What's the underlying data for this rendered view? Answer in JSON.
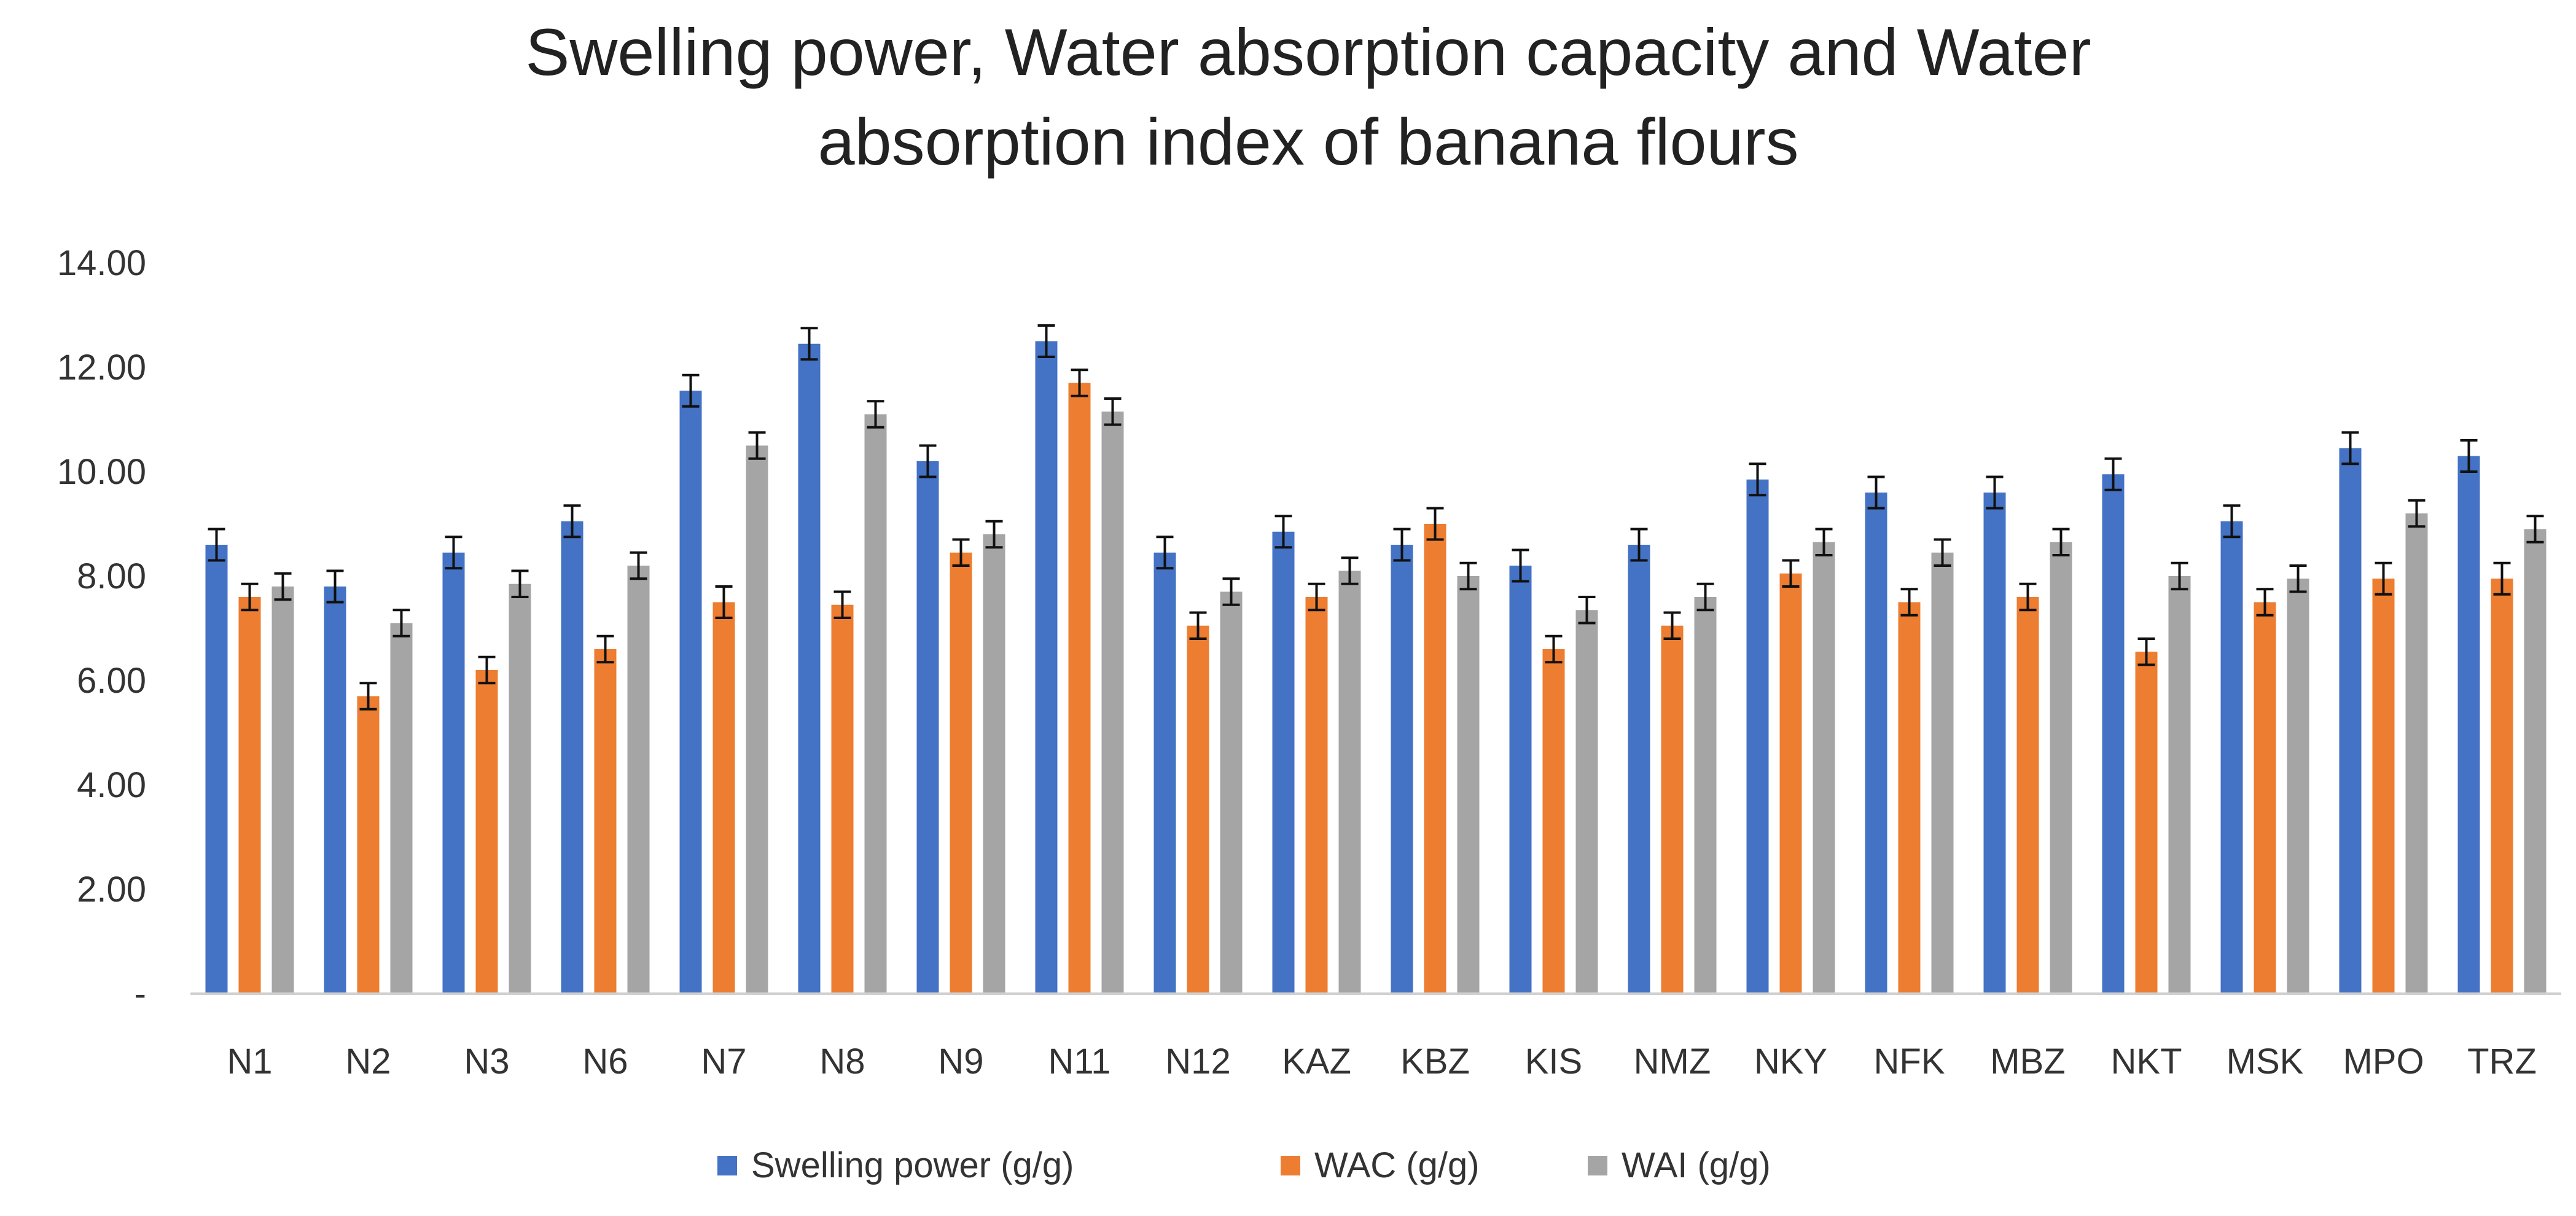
{
  "chart_data": {
    "type": "bar",
    "title": [
      "Swelling power, Water  absorption capacity and Water",
      "absorption index of banana flours"
    ],
    "xlabel": "",
    "ylabel": "",
    "ylim": [
      0,
      14
    ],
    "grid": false,
    "legend_position": "bottom",
    "y_ticks": [
      {
        "value": 0,
        "label": "-"
      },
      {
        "value": 2,
        "label": "2.00"
      },
      {
        "value": 4,
        "label": "4.00"
      },
      {
        "value": 6,
        "label": "6.00"
      },
      {
        "value": 8,
        "label": "8.00"
      },
      {
        "value": 10,
        "label": "10.00"
      },
      {
        "value": 12,
        "label": "12.00"
      },
      {
        "value": 14,
        "label": "14.00"
      }
    ],
    "categories": [
      "N1",
      "N2",
      "N3",
      "N6",
      "N7",
      "N8",
      "N9",
      "N11",
      "N12",
      "KAZ",
      "KBZ",
      "KIS",
      "NMZ",
      "NKY",
      "NFK",
      "MBZ",
      "NKT",
      "MSK",
      "MPO",
      "TRZ"
    ],
    "series": [
      {
        "name": "Swelling power (g/g)",
        "color": "#4472C4",
        "values": [
          8.6,
          7.8,
          8.45,
          9.05,
          11.55,
          12.45,
          10.2,
          12.5,
          8.45,
          8.85,
          8.6,
          8.2,
          8.6,
          9.85,
          9.6,
          9.6,
          9.95,
          9.05,
          10.45,
          10.3
        ],
        "errors": [
          0.3,
          0.3,
          0.3,
          0.3,
          0.3,
          0.3,
          0.3,
          0.3,
          0.3,
          0.3,
          0.3,
          0.3,
          0.3,
          0.3,
          0.3,
          0.3,
          0.3,
          0.3,
          0.3,
          0.3
        ]
      },
      {
        "name": "WAC (g/g)",
        "color": "#ED7D31",
        "values": [
          7.6,
          5.7,
          6.2,
          6.6,
          7.5,
          7.45,
          8.45,
          11.7,
          7.05,
          7.6,
          9.0,
          6.6,
          7.05,
          8.05,
          7.5,
          7.6,
          6.55,
          7.5,
          7.95,
          7.95
        ],
        "errors": [
          0.25,
          0.25,
          0.25,
          0.25,
          0.3,
          0.25,
          0.25,
          0.25,
          0.25,
          0.25,
          0.3,
          0.25,
          0.25,
          0.25,
          0.25,
          0.25,
          0.25,
          0.25,
          0.3,
          0.3
        ]
      },
      {
        "name": "WAI (g/g)",
        "color": "#A5A5A5",
        "values": [
          7.8,
          7.1,
          7.85,
          8.2,
          10.5,
          11.1,
          8.8,
          11.15,
          7.7,
          8.1,
          8.0,
          7.35,
          7.6,
          8.65,
          8.45,
          8.65,
          8.0,
          7.95,
          9.2,
          8.9
        ],
        "errors": [
          0.25,
          0.25,
          0.25,
          0.25,
          0.25,
          0.25,
          0.25,
          0.25,
          0.25,
          0.25,
          0.25,
          0.25,
          0.25,
          0.25,
          0.25,
          0.25,
          0.25,
          0.25,
          0.25,
          0.25
        ]
      }
    ]
  }
}
